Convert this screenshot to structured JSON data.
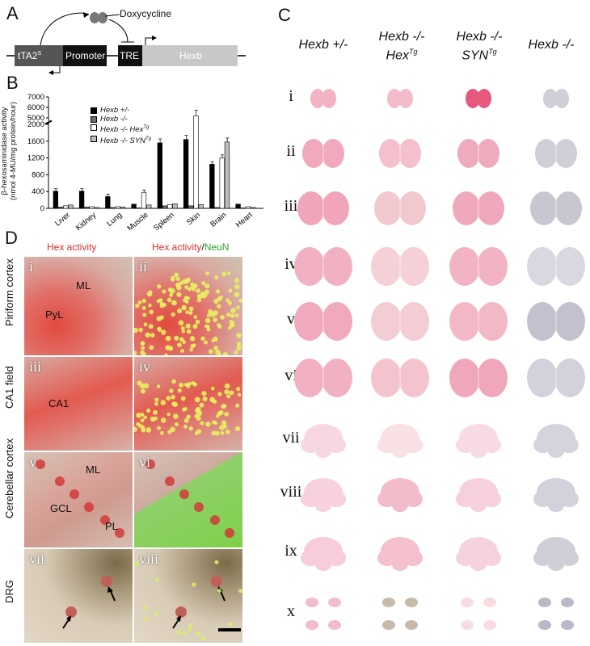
{
  "panelA": {
    "letter": "A",
    "doxy": "Doxycycline",
    "boxes": [
      "tTA2",
      "Promoter",
      "TRE",
      "Hexb"
    ],
    "tta_sup": "S"
  },
  "panelB": {
    "letter": "B",
    "ylabel1": "β-hexosaminidase activity",
    "ylabel2": "(nmol 4-MU/mg protein/hour)",
    "yticks_low": [
      "0",
      "400",
      "800",
      "1200",
      "1600",
      "2000"
    ],
    "yticks_high": [
      "5000",
      "6000",
      "7000"
    ],
    "legend": [
      {
        "label": "Hexb +/-",
        "sup": ""
      },
      {
        "label": "Hexb -/-",
        "sup": ""
      },
      {
        "label": "Hexb -/- Hex",
        "sup": "Tg"
      },
      {
        "label": "Hexb -/- SYN",
        "sup": "Tg"
      }
    ],
    "colors": [
      "#000000",
      "#6e6e6e",
      "#ffffff",
      "#bdbdbd"
    ]
  },
  "chart_data": {
    "type": "bar",
    "categories": [
      "Liver",
      "Kidney",
      "Lung",
      "Muscle",
      "Spleen",
      "Skin",
      "Brain",
      "Heart"
    ],
    "series": [
      {
        "name": "Hexb +/-",
        "values": [
          410,
          410,
          280,
          100,
          1560,
          1640,
          1050,
          100
        ]
      },
      {
        "name": "Hexb -/-",
        "values": [
          30,
          30,
          20,
          10,
          60,
          60,
          20,
          10
        ]
      },
      {
        "name": "Hexb -/- HexTg",
        "values": [
          60,
          40,
          40,
          380,
          90,
          5200,
          1200,
          40
        ]
      },
      {
        "name": "Hexb -/- SYNTg",
        "values": [
          80,
          20,
          30,
          80,
          110,
          90,
          1580,
          20
        ]
      }
    ],
    "ylim": [
      0,
      7000
    ],
    "axis_break": [
      2000,
      4500
    ]
  },
  "panelC": {
    "letter": "C",
    "columns": [
      {
        "line1": "Hexb +/-",
        "line2": "",
        "sup": ""
      },
      {
        "line1": "Hexb -/-",
        "line2": "Hex",
        "sup": "Tg"
      },
      {
        "line1": "Hexb -/-",
        "line2": "SYN",
        "sup": "Tg"
      },
      {
        "line1": "Hexb -/-",
        "line2": "",
        "sup": ""
      }
    ],
    "rows": [
      "i",
      "ii",
      "iii",
      "iv",
      "v",
      "vi",
      "vii",
      "viii",
      "ix",
      "x"
    ]
  },
  "panelD": {
    "letter": "D",
    "header_left": "Hex activity",
    "header_right_red": "Hex activity",
    "header_right_slash": "/",
    "header_right_green": "NeuN",
    "rows": [
      "Piriform cortex",
      "CA1 field",
      "Cerebellar cortex",
      "DRG"
    ],
    "romans": [
      "i",
      "ii",
      "iii",
      "iv",
      "v",
      "vi",
      "vii",
      "viii"
    ],
    "labels": {
      "ml": "ML",
      "pyl": "PyL",
      "ca1": "CA1",
      "ml2": "ML",
      "gcl": "GCL",
      "pl": "PL"
    }
  }
}
